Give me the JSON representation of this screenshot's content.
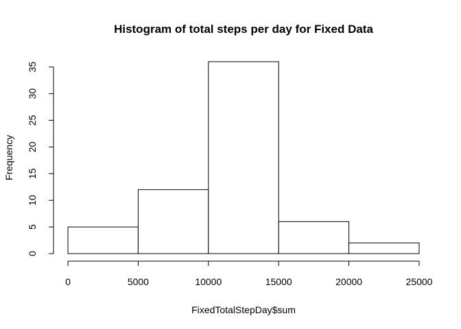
{
  "chart_data": {
    "type": "bar",
    "title": "Histogram of total steps per day for Fixed Data",
    "xlabel": "FixedTotalStepDay$sum",
    "ylabel": "Frequency",
    "bins": [
      {
        "from": 0,
        "to": 5000,
        "count": 5
      },
      {
        "from": 5000,
        "to": 10000,
        "count": 12
      },
      {
        "from": 10000,
        "to": 15000,
        "count": 36
      },
      {
        "from": 15000,
        "to": 20000,
        "count": 6
      },
      {
        "from": 20000,
        "to": 25000,
        "count": 2
      }
    ],
    "xlim": [
      0,
      25000
    ],
    "ylim": [
      0,
      36
    ],
    "x_ticks": [
      0,
      5000,
      10000,
      15000,
      20000,
      25000
    ],
    "y_ticks": [
      0,
      5,
      10,
      15,
      20,
      25,
      30,
      35
    ],
    "grid": false,
    "bar_fill": "#ffffff",
    "bar_stroke": "#000000"
  }
}
